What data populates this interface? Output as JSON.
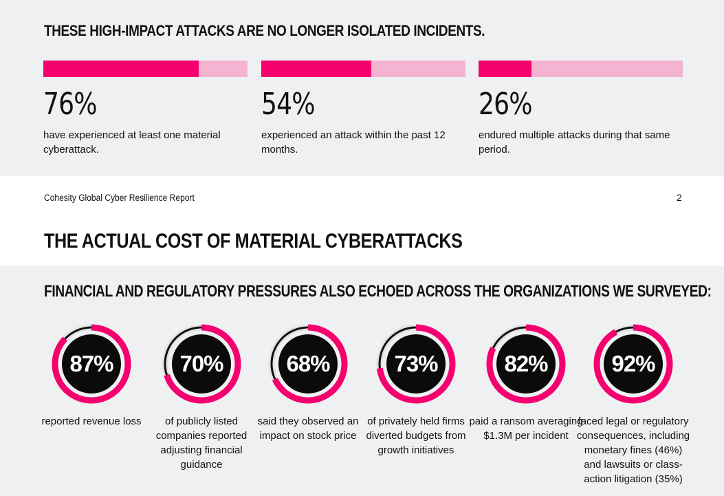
{
  "top": {
    "heading": "THESE HIGH-IMPACT ATTACKS ARE NO LONGER ISOLATED INCIDENTS.",
    "stats": [
      {
        "value": "76%",
        "fraction": 0.76,
        "desc": "have experienced at least one material cyberattack."
      },
      {
        "value": "54%",
        "fraction": 0.54,
        "desc": "experienced an attack within the past 12 months."
      },
      {
        "value": "26%",
        "fraction": 0.26,
        "desc": "endured multiple attacks during that same period."
      }
    ]
  },
  "footer": {
    "title": "Cohesity Global Cyber Resilience Report",
    "page": "2"
  },
  "main": {
    "heading": "THE ACTUAL COST OF MATERIAL CYBERATTACKS",
    "subheading": "FINANCIAL AND REGULATORY PRESSURES ALSO ECHOED ACROSS THE ORGANIZATIONS WE SURVEYED:",
    "metrics": [
      {
        "value": "87%",
        "fraction": 0.87,
        "desc": "reported revenue loss"
      },
      {
        "value": "70%",
        "fraction": 0.7,
        "desc": "of publicly listed companies reported adjusting financial guidance"
      },
      {
        "value": "68%",
        "fraction": 0.68,
        "desc": "said they observed an impact on stock price"
      },
      {
        "value": "73%",
        "fraction": 0.73,
        "desc": "of privately held firms diverted budgets from growth initiatives"
      },
      {
        "value": "82%",
        "fraction": 0.82,
        "desc": "paid a ransom averaging $1.3M per incident"
      },
      {
        "value": "92%",
        "fraction": 0.92,
        "desc": "faced legal or regulatory consequences, including monetary fines (46%) and lawsuits or class-action litigation (35%)"
      }
    ]
  },
  "colors": {
    "accent": "#f5006f",
    "accent_light": "#f4b4d1",
    "panel": "#eef0f1",
    "ring_track": "#e3e3e3",
    "disc": "#0b0b0b"
  }
}
